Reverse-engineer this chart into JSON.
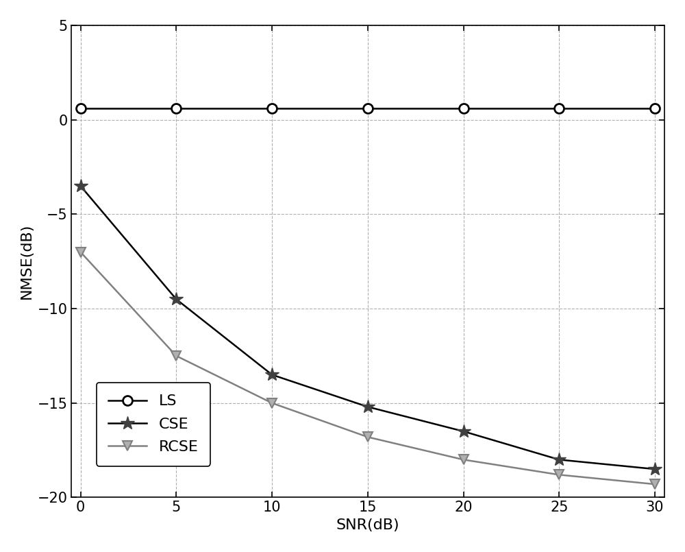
{
  "snr": [
    0,
    5,
    10,
    15,
    20,
    25,
    30
  ],
  "ls": [
    0.6,
    0.6,
    0.6,
    0.6,
    0.6,
    0.6,
    0.6
  ],
  "cse": [
    -3.5,
    -9.5,
    -13.5,
    -15.2,
    -16.5,
    -18.0,
    -18.5
  ],
  "rcse": [
    -7.0,
    -12.5,
    -15.0,
    -16.8,
    -18.0,
    -18.8,
    -19.3
  ],
  "xlabel": "SNR(dB)",
  "ylabel": "NMSE(dB)",
  "xlim": [
    -0.5,
    30.5
  ],
  "ylim": [
    -20,
    5
  ],
  "yticks": [
    -20,
    -15,
    -10,
    -5,
    0,
    5
  ],
  "xticks": [
    0,
    5,
    10,
    15,
    20,
    25,
    30
  ],
  "ls_color": "#000000",
  "cse_color": "#000000",
  "rcse_color": "#808080",
  "legend_labels": [
    "LS",
    "CSE",
    "RCSE"
  ],
  "legend_loc": "lower left",
  "grid_color": "#b0b0b0",
  "grid_style": "--",
  "linewidth": 1.8,
  "markersize": 10
}
